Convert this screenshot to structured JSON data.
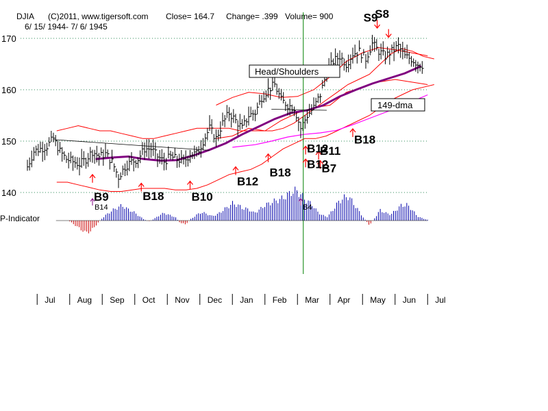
{
  "header": {
    "ticker": "DJIA",
    "copyright": "(C)2011, www.tigersoft.com",
    "close": "Close=  164.7",
    "change": "Change= .399",
    "volume": "Volume= 900",
    "date_range": "6/ 15/ 1944- 7/ 6/ 1945"
  },
  "colors": {
    "price": "#000000",
    "bands": "#ff0000",
    "ma_purple": "#800080",
    "dma_magenta": "#ff00ff",
    "indicator": "#0000aa",
    "indicator_neg": "#cc0000",
    "grid": "#2e8b57",
    "vline": "#008000",
    "signal": "#ff0000"
  },
  "chart_data": {
    "type": "line",
    "title": "DJIA",
    "ylim": [
      137,
      174
    ],
    "yticks": [
      140,
      150,
      160,
      170
    ],
    "ytick_labels": [
      "140",
      "150",
      "160",
      "170"
    ],
    "months": [
      "Jul",
      "Aug",
      "Sep",
      "Oct",
      "Nov",
      "Dec",
      "Jan",
      "Feb",
      "Mar",
      "Apr",
      "May",
      "Jun",
      "Jul"
    ],
    "month_starts": [
      0.3,
      1.3,
      2.3,
      3.3,
      4.3,
      5.3,
      6.3,
      7.3,
      8.3,
      9.3,
      10.3,
      11.3,
      12.3
    ],
    "price_x": [
      0,
      0.2,
      0.4,
      0.6,
      0.8,
      1.0,
      1.2,
      1.4,
      1.6,
      1.8,
      2.0,
      2.2,
      2.4,
      2.6,
      2.8,
      3.0,
      3.2,
      3.4,
      3.6,
      3.8,
      4.0,
      4.2,
      4.4,
      4.6,
      4.8,
      5.0,
      5.2,
      5.4,
      5.6,
      5.8,
      6.0,
      6.2,
      6.4,
      6.6,
      6.8,
      7.0,
      7.2,
      7.4,
      7.6,
      7.8,
      8.0,
      8.2,
      8.4,
      8.6,
      8.8,
      9.0,
      9.2,
      9.4,
      9.6,
      9.8,
      10.0,
      10.2,
      10.4,
      10.6,
      10.8,
      11.0,
      11.2,
      11.4,
      11.6,
      11.8,
      12.0,
      12.2
    ],
    "price_y": [
      145,
      148,
      148.5,
      149,
      150.5,
      148,
      146.5,
      146,
      145.5,
      146.5,
      148,
      147,
      147.5,
      146,
      143,
      145,
      146,
      146.5,
      148.5,
      148.5,
      147,
      146,
      147,
      146.5,
      146,
      147.5,
      147.5,
      150,
      152.5,
      150.5,
      153.5,
      155.5,
      154,
      152.5,
      155,
      155.5,
      158.5,
      160,
      161,
      158,
      157,
      156.5,
      152.5,
      155,
      156.5,
      159,
      163.5,
      165.5,
      166.5,
      165,
      167,
      167.5,
      166,
      169,
      167.5,
      166.5,
      167.5,
      168.5,
      166.5,
      166,
      165,
      164.7
    ],
    "ma_purple_x": [
      2.1,
      2.6,
      3.1,
      3.6,
      4.1,
      4.6,
      5.1,
      5.6,
      6.1,
      6.6,
      7.1,
      7.6,
      8.1,
      8.6,
      9.1,
      9.6,
      10.1,
      10.6,
      11.1,
      11.6,
      12.1
    ],
    "ma_purple_y": [
      146.5,
      146.8,
      147,
      146.5,
      146.2,
      146.3,
      147.2,
      148.3,
      149.6,
      151.3,
      152.8,
      154.3,
      155.5,
      156,
      157,
      158.7,
      160,
      161.2,
      162.2,
      163.2,
      164.6
    ],
    "dma_x": [
      6.3,
      7.0,
      7.5,
      8.0,
      8.5,
      9.0,
      9.5,
      10.0,
      10.5,
      11.0,
      11.5,
      12.0,
      12.3
    ],
    "dma_y": [
      148.8,
      149.3,
      150,
      150.8,
      151.3,
      151.6,
      152.1,
      153.2,
      154.4,
      155.6,
      156.8,
      158.2,
      159
    ],
    "upper_band_y": [
      152,
      152.5,
      153,
      152.5,
      152,
      152,
      151.5,
      151,
      150.5,
      150.5,
      151,
      151.5,
      152,
      152.5,
      152.5,
      152.5,
      152.5,
      152,
      152,
      152,
      152,
      152.5,
      153.5,
      155,
      156.5,
      158,
      159.5,
      161,
      162,
      163,
      165,
      167,
      168,
      167.5,
      166.5,
      166
    ],
    "lower_band_y": [
      142,
      142,
      141.5,
      141,
      140.5,
      140.2,
      140.2,
      140.5,
      140.8,
      140.8,
      140.8,
      140.5,
      140.5,
      140.8,
      141.5,
      142.5,
      143.5,
      144,
      144.5,
      145.5,
      147,
      148.5,
      149.5,
      150.5,
      150.5,
      151,
      152,
      153,
      154,
      155,
      156.5,
      158,
      159,
      160,
      160.5,
      161
    ],
    "inner_upper_y": [
      157,
      158.5,
      159.5,
      159.2,
      158.5,
      158.7,
      160,
      162.5,
      165.5,
      167.2,
      168.2,
      167.8,
      167.2,
      166.6
    ],
    "inner_lower_y": [
      150.5,
      151,
      152.5,
      152,
      154,
      155.5,
      156.5,
      157,
      159.5,
      160.5,
      161.5,
      162,
      161.5,
      161
    ],
    "neckline_label": "Head/Shoulders",
    "dma_label": "149-dma",
    "indicator_label": "P-Indicator",
    "indicator_values": [
      -0.05,
      -0.3,
      -0.55,
      -0.8,
      -0.7,
      -0.3,
      0.1,
      0.4,
      0.65,
      0.85,
      1.0,
      0.75,
      0.6,
      0.35,
      0.1,
      -0.05,
      0.1,
      0.35,
      0.5,
      0.35,
      0.25,
      -0.15,
      -0.25,
      0.1,
      0.35,
      0.55,
      0.45,
      0.3,
      0.4,
      0.65,
      0.9,
      1.15,
      1.0,
      0.8,
      0.75,
      0.5,
      0.7,
      1.0,
      1.15,
      1.3,
      1.4,
      1.6,
      1.85,
      2.0,
      1.7,
      1.3,
      1.1,
      0.6,
      0.35,
      0.25,
      0.7,
      1.2,
      1.5,
      1.6,
      1.1,
      0.6,
      0.1,
      -0.3,
      0.2,
      0.7,
      0.5,
      0.4,
      0.7,
      1.0,
      1.05,
      0.75,
      0.3,
      0.15,
      0.05
    ],
    "signals_up": [
      {
        "label": "B9",
        "x": 2.0,
        "price": 143.5,
        "text_price": 139.5
      },
      {
        "label": "B18",
        "x": 3.5,
        "price": 141.8,
        "text_price": 139.6
      },
      {
        "label": "B10",
        "x": 5.0,
        "price": 142.2,
        "text_price": 139.5
      },
      {
        "label": "B12",
        "x": 6.4,
        "price": 145.0,
        "text_price": 142.5
      },
      {
        "label": "B18",
        "x": 7.4,
        "price": 147.5,
        "text_price": 144.2
      },
      {
        "label": "B18",
        "x": 10.0,
        "price": 152.4,
        "text_price": 150.6
      },
      {
        "label": "B11",
        "x": 8.95,
        "price": 148.0,
        "text_price": 148.4
      },
      {
        "label": "B7",
        "x": 9.0,
        "price": 146.2,
        "text_price": 145.0
      },
      {
        "label": "B12",
        "x": 8.55,
        "price": 149.0,
        "text_price": 148.9
      },
      {
        "label": "B12",
        "x": 8.55,
        "price": 146.5,
        "text_price": 145.8
      }
    ],
    "signals_down": [
      {
        "label": "S9",
        "x": 10.75,
        "price": 172,
        "text_price": 173.3
      },
      {
        "label": "S8",
        "x": 11.1,
        "price": 170.2,
        "text_price": 174.0
      }
    ],
    "indicator_signals": [
      {
        "label": "B14",
        "x": 2.0
      },
      {
        "label": "B4",
        "x": 8.4
      }
    ],
    "marker_month": 8.5
  }
}
